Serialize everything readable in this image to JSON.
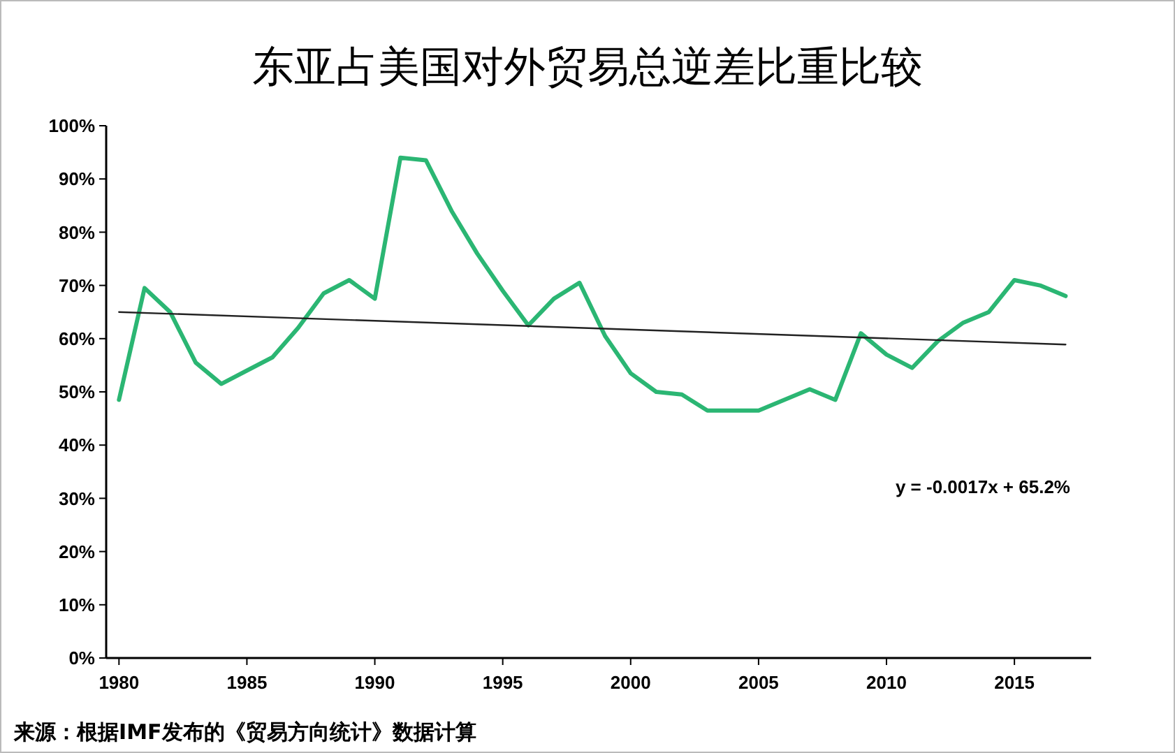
{
  "chart_data": {
    "type": "line",
    "title": "东亚占美国对外贸易总逆差比重比较",
    "x": [
      1980,
      1981,
      1982,
      1983,
      1984,
      1985,
      1986,
      1987,
      1988,
      1989,
      1990,
      1991,
      1992,
      1993,
      1994,
      1995,
      1996,
      1997,
      1998,
      1999,
      2000,
      2001,
      2002,
      2003,
      2004,
      2005,
      2006,
      2007,
      2008,
      2009,
      2010,
      2011,
      2012,
      2013,
      2014,
      2015,
      2016,
      2017
    ],
    "series": [
      {
        "color": "#2bb673",
        "values": [
          48.5,
          69.5,
          65,
          55.5,
          51.5,
          54,
          56.5,
          62,
          68.5,
          71,
          67.5,
          94,
          93.5,
          84,
          76,
          69,
          62.5,
          67.5,
          70.5,
          60.5,
          53.5,
          50,
          49.5,
          46.5,
          46.5,
          46.5,
          48.5,
          50.5,
          48.5,
          61,
          57,
          54.5,
          59.5,
          63,
          65,
          71,
          70,
          68
        ]
      },
      {
        "type": "line",
        "color": "#222222",
        "x": [
          1980,
          2017
        ],
        "values": [
          65,
          58.9
        ]
      }
    ],
    "xlim": [
      1979.5,
      2018
    ],
    "xticks": [
      1980,
      1985,
      1990,
      1995,
      2000,
      2005,
      2010,
      2015
    ],
    "ylim": [
      0,
      100
    ],
    "yticks": [
      {
        "value": 0,
        "label": "0%"
      },
      {
        "value": 10,
        "label": "10%"
      },
      {
        "value": 20,
        "label": "20%"
      },
      {
        "value": 30,
        "label": "30%"
      },
      {
        "value": 40,
        "label": "40%"
      },
      {
        "value": 50,
        "label": "50%"
      },
      {
        "value": 60,
        "label": "60%"
      },
      {
        "value": 70,
        "label": "70%"
      },
      {
        "value": 80,
        "label": "80%"
      },
      {
        "value": 90,
        "label": "90%"
      },
      {
        "value": 100,
        "label": "100%"
      }
    ],
    "grid": false,
    "marker": "none",
    "line_style": "solid",
    "annotations": [
      "y = -0.0017x + 65.2%",
      "来源：根据IMF发布的《贸易方向统计》数据计算"
    ]
  }
}
